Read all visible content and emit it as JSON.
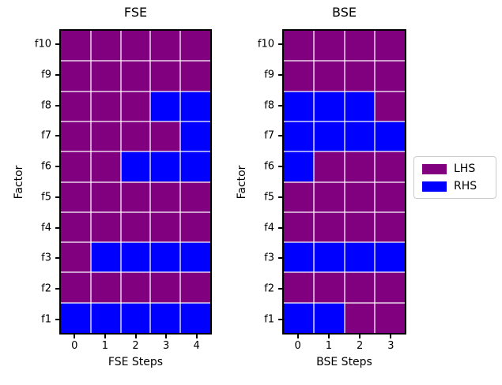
{
  "figure": {
    "background": "#ffffff",
    "text_color": "#000000"
  },
  "colors": {
    "LHS": "#800080",
    "RHS": "#0000ff",
    "grid_line": "rgba(255,255,255,0.62)",
    "axes_spine": "#000000"
  },
  "legend": {
    "position": "center-right",
    "entries": [
      {
        "label": "LHS",
        "color": "#800080"
      },
      {
        "label": "RHS",
        "color": "#0000ff"
      }
    ]
  },
  "chart_data": [
    {
      "type": "heatmap",
      "title": "FSE",
      "xlabel": "FSE Steps",
      "ylabel": "Factor",
      "grid": true,
      "x_ticks": [
        "0",
        "1",
        "2",
        "3",
        "4"
      ],
      "y_ticks_top_to_bottom": [
        "f10",
        "f9",
        "f8",
        "f7",
        "f6",
        "f5",
        "f4",
        "f3",
        "f2",
        "f1"
      ],
      "rows_top_to_bottom": [
        [
          "LHS",
          "LHS",
          "LHS",
          "LHS",
          "LHS"
        ],
        [
          "LHS",
          "LHS",
          "LHS",
          "LHS",
          "LHS"
        ],
        [
          "LHS",
          "LHS",
          "LHS",
          "RHS",
          "RHS"
        ],
        [
          "LHS",
          "LHS",
          "LHS",
          "LHS",
          "RHS"
        ],
        [
          "LHS",
          "LHS",
          "RHS",
          "RHS",
          "RHS"
        ],
        [
          "LHS",
          "LHS",
          "LHS",
          "LHS",
          "LHS"
        ],
        [
          "LHS",
          "LHS",
          "LHS",
          "LHS",
          "LHS"
        ],
        [
          "LHS",
          "RHS",
          "RHS",
          "RHS",
          "RHS"
        ],
        [
          "LHS",
          "LHS",
          "LHS",
          "LHS",
          "LHS"
        ],
        [
          "RHS",
          "RHS",
          "RHS",
          "RHS",
          "RHS"
        ]
      ]
    },
    {
      "type": "heatmap",
      "title": "BSE",
      "xlabel": "BSE Steps",
      "ylabel": "Factor",
      "grid": true,
      "x_ticks": [
        "0",
        "1",
        "2",
        "3"
      ],
      "y_ticks_top_to_bottom": [
        "f10",
        "f9",
        "f8",
        "f7",
        "f6",
        "f5",
        "f4",
        "f3",
        "f2",
        "f1"
      ],
      "rows_top_to_bottom": [
        [
          "LHS",
          "LHS",
          "LHS",
          "LHS"
        ],
        [
          "LHS",
          "LHS",
          "LHS",
          "LHS"
        ],
        [
          "RHS",
          "RHS",
          "RHS",
          "LHS"
        ],
        [
          "RHS",
          "RHS",
          "RHS",
          "RHS"
        ],
        [
          "RHS",
          "LHS",
          "LHS",
          "LHS"
        ],
        [
          "LHS",
          "LHS",
          "LHS",
          "LHS"
        ],
        [
          "LHS",
          "LHS",
          "LHS",
          "LHS"
        ],
        [
          "RHS",
          "RHS",
          "RHS",
          "RHS"
        ],
        [
          "LHS",
          "LHS",
          "LHS",
          "LHS"
        ],
        [
          "RHS",
          "RHS",
          "LHS",
          "LHS"
        ]
      ]
    }
  ]
}
